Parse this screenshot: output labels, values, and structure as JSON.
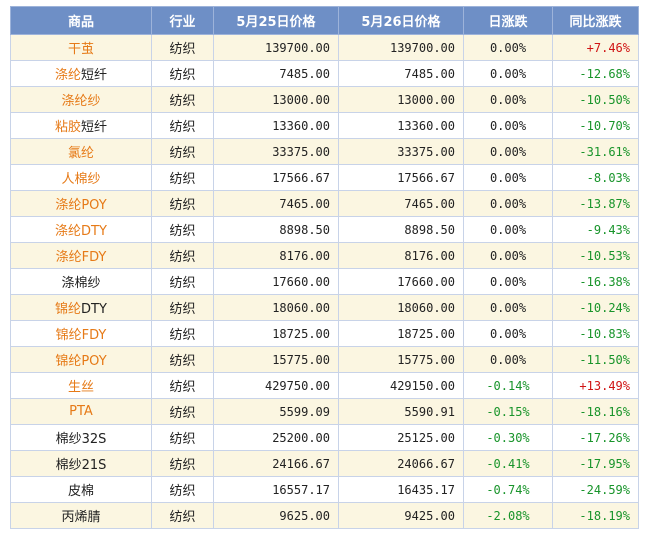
{
  "headers": [
    "商品",
    "行业",
    "5月25日价格",
    "5月26日价格",
    "日涨跌",
    "同比涨跌"
  ],
  "rows": [
    {
      "name_link": "干茧",
      "name_rest": "",
      "industry": "纺织",
      "p1": "139700.00",
      "p2": "139700.00",
      "day": "0.00%",
      "yoy": "+7.46%",
      "yoy_dir": "pos",
      "day_dir": "flat"
    },
    {
      "name_link": "涤纶",
      "name_rest": "短纤",
      "industry": "纺织",
      "p1": "7485.00",
      "p2": "7485.00",
      "day": "0.00%",
      "yoy": "-12.68%",
      "yoy_dir": "neg",
      "day_dir": "flat"
    },
    {
      "name_link": "涤纶纱",
      "name_rest": "",
      "industry": "纺织",
      "p1": "13000.00",
      "p2": "13000.00",
      "day": "0.00%",
      "yoy": "-10.50%",
      "yoy_dir": "neg",
      "day_dir": "flat"
    },
    {
      "name_link": "粘胶",
      "name_rest": "短纤",
      "industry": "纺织",
      "p1": "13360.00",
      "p2": "13360.00",
      "day": "0.00%",
      "yoy": "-10.70%",
      "yoy_dir": "neg",
      "day_dir": "flat"
    },
    {
      "name_link": "氯纶",
      "name_rest": "",
      "industry": "纺织",
      "p1": "33375.00",
      "p2": "33375.00",
      "day": "0.00%",
      "yoy": "-31.61%",
      "yoy_dir": "neg",
      "day_dir": "flat"
    },
    {
      "name_link": "人棉纱",
      "name_rest": "",
      "industry": "纺织",
      "p1": "17566.67",
      "p2": "17566.67",
      "day": "0.00%",
      "yoy": "-8.03%",
      "yoy_dir": "neg",
      "day_dir": "flat"
    },
    {
      "name_link": "涤纶POY",
      "name_rest": "",
      "industry": "纺织",
      "p1": "7465.00",
      "p2": "7465.00",
      "day": "0.00%",
      "yoy": "-13.87%",
      "yoy_dir": "neg",
      "day_dir": "flat"
    },
    {
      "name_link": "涤纶DTY",
      "name_rest": "",
      "industry": "纺织",
      "p1": "8898.50",
      "p2": "8898.50",
      "day": "0.00%",
      "yoy": "-9.43%",
      "yoy_dir": "neg",
      "day_dir": "flat"
    },
    {
      "name_link": "涤纶FDY",
      "name_rest": "",
      "industry": "纺织",
      "p1": "8176.00",
      "p2": "8176.00",
      "day": "0.00%",
      "yoy": "-10.53%",
      "yoy_dir": "neg",
      "day_dir": "flat"
    },
    {
      "name_link": "",
      "name_rest": "涤棉纱",
      "industry": "纺织",
      "p1": "17660.00",
      "p2": "17660.00",
      "day": "0.00%",
      "yoy": "-16.38%",
      "yoy_dir": "neg",
      "day_dir": "flat"
    },
    {
      "name_link": "锦纶",
      "name_rest": "DTY",
      "industry": "纺织",
      "p1": "18060.00",
      "p2": "18060.00",
      "day": "0.00%",
      "yoy": "-10.24%",
      "yoy_dir": "neg",
      "day_dir": "flat"
    },
    {
      "name_link": "锦纶FDY",
      "name_rest": "",
      "industry": "纺织",
      "p1": "18725.00",
      "p2": "18725.00",
      "day": "0.00%",
      "yoy": "-10.83%",
      "yoy_dir": "neg",
      "day_dir": "flat"
    },
    {
      "name_link": "锦纶POY",
      "name_rest": "",
      "industry": "纺织",
      "p1": "15775.00",
      "p2": "15775.00",
      "day": "0.00%",
      "yoy": "-11.50%",
      "yoy_dir": "neg",
      "day_dir": "flat"
    },
    {
      "name_link": "生丝",
      "name_rest": "",
      "industry": "纺织",
      "p1": "429750.00",
      "p2": "429150.00",
      "day": "-0.14%",
      "yoy": "+13.49%",
      "yoy_dir": "pos",
      "day_dir": "neg"
    },
    {
      "name_link": "PTA",
      "name_rest": "",
      "industry": "纺织",
      "p1": "5599.09",
      "p2": "5590.91",
      "day": "-0.15%",
      "yoy": "-18.16%",
      "yoy_dir": "neg",
      "day_dir": "neg"
    },
    {
      "name_link": "",
      "name_rest": "棉纱32S",
      "industry": "纺织",
      "p1": "25200.00",
      "p2": "25125.00",
      "day": "-0.30%",
      "yoy": "-17.26%",
      "yoy_dir": "neg",
      "day_dir": "neg"
    },
    {
      "name_link": "",
      "name_rest": "棉纱21S",
      "industry": "纺织",
      "p1": "24166.67",
      "p2": "24066.67",
      "day": "-0.41%",
      "yoy": "-17.95%",
      "yoy_dir": "neg",
      "day_dir": "neg"
    },
    {
      "name_link": "",
      "name_rest": "皮棉",
      "industry": "纺织",
      "p1": "16557.17",
      "p2": "16435.17",
      "day": "-0.74%",
      "yoy": "-24.59%",
      "yoy_dir": "neg",
      "day_dir": "neg"
    },
    {
      "name_link": "",
      "name_rest": "丙烯腈",
      "industry": "纺织",
      "p1": "9625.00",
      "p2": "9425.00",
      "day": "-2.08%",
      "yoy": "-18.19%",
      "yoy_dir": "neg",
      "day_dir": "neg"
    }
  ],
  "colors": {
    "header_bg": "#6e8fc6",
    "alt_row_bg": "#fbf6e1",
    "link_orange": "#e67a17",
    "up_red": "#d01414",
    "down_green": "#18942a"
  }
}
